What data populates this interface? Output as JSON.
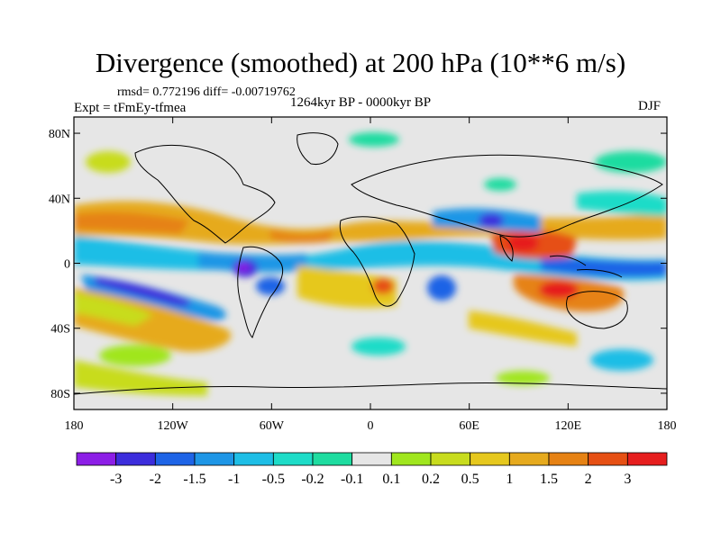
{
  "title": "Divergence (smoothed) at 200 hPa (10**6 m/s)",
  "stats": "rmsd= 0.772196 diff= -0.00719762",
  "experiment": "Expt = tFmEy-tfmea",
  "period": "1264kyr BP - 0000kyr BP",
  "season": "DJF",
  "lat_labels": [
    "80N",
    "40N",
    "0",
    "40S",
    "80S"
  ],
  "lon_labels": [
    "180",
    "120W",
    "60W",
    "0",
    "60E",
    "120E",
    "180"
  ],
  "colorbar": {
    "colors": [
      "#8c1ee6",
      "#3c2ddc",
      "#1e64e6",
      "#1e96e6",
      "#1ebee6",
      "#1edcc8",
      "#1edca0",
      "#e6e6e6",
      "#a0e61e",
      "#c8dc1e",
      "#e6c81e",
      "#e6aa1e",
      "#e68214",
      "#e65014",
      "#e61e1e"
    ],
    "labels": [
      "-3",
      "-2",
      "-1.5",
      "-1",
      "-0.5",
      "-0.2",
      "-0.1",
      "0.1",
      "0.2",
      "0.5",
      "1",
      "1.5",
      "2",
      "3"
    ]
  }
}
